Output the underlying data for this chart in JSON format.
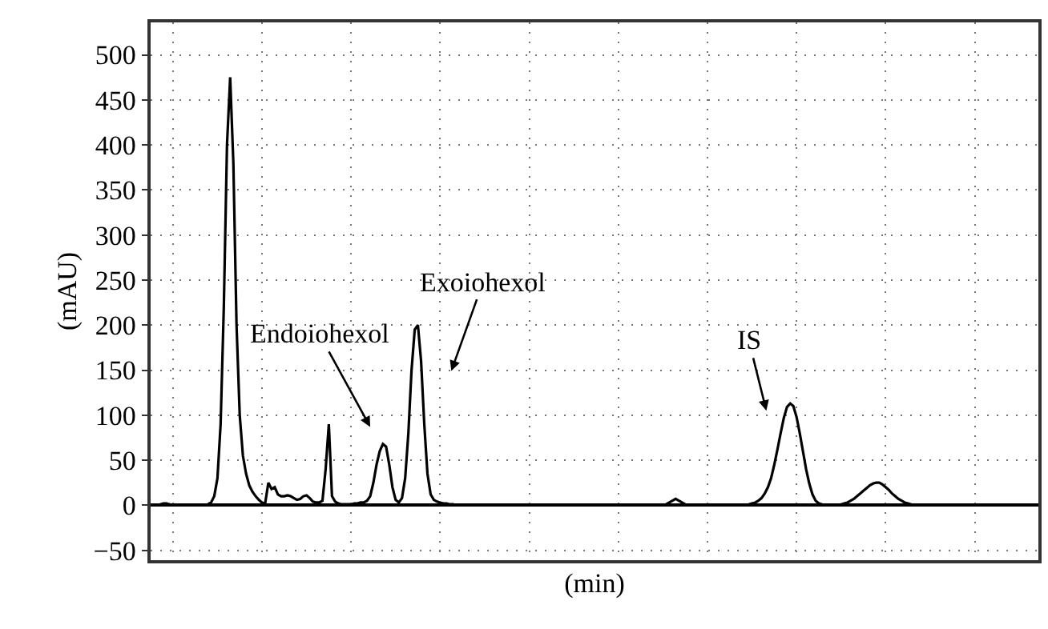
{
  "chart_data": {
    "type": "line",
    "xlabel": "(min)",
    "ylabel": "(mAU)",
    "categories": [
      null,
      null,
      null,
      null,
      null,
      null,
      null,
      null,
      null,
      null,
      null,
      null,
      null,
      null,
      null,
      null,
      null,
      null,
      null,
      null,
      null,
      null,
      null,
      null,
      null,
      null,
      null,
      null,
      null,
      null,
      null,
      null,
      null,
      null,
      null,
      null,
      null,
      null,
      null,
      null,
      null,
      null,
      null,
      null,
      null,
      null,
      null,
      null,
      null,
      null,
      null,
      null,
      null,
      null,
      null,
      null,
      null,
      null,
      null,
      null,
      null,
      null,
      null,
      null,
      null,
      null,
      null,
      null,
      null,
      null,
      null,
      null,
      null,
      null,
      null,
      null,
      null,
      null,
      null,
      null,
      null,
      null,
      null,
      null,
      null,
      null,
      null,
      null,
      null,
      null,
      null,
      null,
      null,
      null,
      null,
      null,
      null,
      null,
      null,
      null,
      null,
      null,
      null,
      null,
      null,
      null,
      null,
      null,
      null,
      null,
      null,
      null,
      null,
      null,
      null,
      null,
      null,
      null,
      null,
      null,
      null,
      null,
      null,
      null,
      null,
      null,
      null,
      null,
      null,
      null,
      null,
      null,
      null,
      null,
      null,
      null,
      null,
      null,
      null,
      null,
      null,
      null,
      null,
      null,
      null,
      null,
      null,
      null,
      null,
      null,
      null,
      null,
      null,
      null,
      null,
      null,
      null,
      null,
      null,
      null,
      null,
      null,
      null,
      null,
      null,
      null,
      null,
      null,
      null,
      null,
      null,
      null,
      null,
      null,
      null,
      null,
      null,
      null,
      null,
      null,
      null,
      null,
      null,
      null,
      null,
      null,
      null,
      null,
      null,
      null,
      null,
      null,
      null,
      null,
      null,
      null,
      null,
      null,
      null,
      null,
      null,
      null,
      null,
      null,
      null,
      null,
      null,
      null,
      null,
      null,
      null,
      null,
      null,
      null,
      null,
      null,
      null,
      null,
      null,
      null,
      null,
      null,
      null,
      null,
      null,
      null,
      null,
      null,
      null,
      null,
      null,
      null,
      null,
      null,
      null,
      null,
      null,
      null,
      null,
      null,
      null,
      null,
      null,
      null,
      null,
      null,
      null,
      null,
      null,
      null,
      null,
      null,
      null,
      null,
      null,
      null,
      null,
      null,
      null,
      null,
      null,
      null,
      null,
      null,
      null,
      null,
      null,
      null,
      null,
      null,
      null,
      null,
      null,
      null,
      null,
      null,
      null,
      null,
      null,
      null
    ],
    "series": [
      {
        "color": "#000000",
        "values": [
          0,
          0,
          0,
          1,
          2,
          2,
          1,
          0,
          0,
          0,
          0,
          0,
          0,
          0,
          0,
          0,
          0,
          0,
          1,
          3,
          10,
          30,
          90,
          220,
          400,
          475,
          380,
          200,
          100,
          55,
          35,
          22,
          15,
          10,
          6,
          3,
          2,
          25,
          18,
          20,
          12,
          10,
          10,
          11,
          10,
          8,
          6,
          7,
          10,
          11,
          8,
          4,
          3,
          3,
          5,
          40,
          90,
          10,
          4,
          2,
          1,
          1,
          1,
          1,
          2,
          2,
          3,
          3,
          5,
          10,
          25,
          45,
          60,
          68,
          65,
          45,
          20,
          6,
          3,
          8,
          30,
          80,
          150,
          195,
          200,
          160,
          90,
          35,
          12,
          6,
          4,
          3,
          2,
          2,
          1,
          1,
          0,
          0,
          0,
          0,
          0,
          0,
          0,
          0,
          0,
          0,
          0,
          0,
          0,
          0,
          0,
          0,
          0,
          0,
          0,
          0,
          0,
          0,
          0,
          0,
          0,
          0,
          0,
          0,
          0,
          0,
          0,
          0,
          0,
          0,
          0,
          0,
          0,
          0,
          0,
          0,
          0,
          0,
          0,
          0,
          0,
          0,
          0,
          0,
          0,
          0,
          0,
          0,
          0,
          0,
          0,
          0,
          0,
          0,
          0,
          0,
          0,
          0,
          0,
          0,
          0,
          0,
          1,
          3,
          5,
          7,
          5,
          3,
          1,
          0,
          0,
          0,
          0,
          0,
          0,
          0,
          0,
          0,
          0,
          0,
          0,
          0,
          0,
          0,
          0,
          0,
          0,
          0,
          1,
          2,
          3,
          5,
          8,
          13,
          20,
          30,
          45,
          62,
          80,
          97,
          109,
          113,
          110,
          98,
          80,
          60,
          40,
          24,
          12,
          5,
          2,
          1,
          0,
          0,
          0,
          0,
          0,
          1,
          2,
          3,
          5,
          7,
          10,
          13,
          16,
          19,
          22,
          24,
          25,
          25,
          23,
          20,
          17,
          13,
          10,
          7,
          5,
          3,
          2,
          1,
          0,
          0,
          0,
          0,
          0,
          0,
          0,
          0,
          0,
          0,
          0,
          0,
          0,
          0,
          0,
          0,
          0,
          0,
          0,
          0,
          0,
          0,
          0,
          0,
          0,
          0,
          0,
          0,
          0,
          0,
          0,
          0,
          0,
          0,
          0,
          0,
          0,
          0,
          0,
          0
        ]
      }
    ],
    "annotations": [
      "Endoiohexol",
      "Exoiohexol",
      "IS"
    ],
    "ylim": [
      -61,
      536
    ],
    "yticks": [
      -50,
      0,
      50,
      100,
      150,
      200,
      250,
      300,
      350,
      400,
      450,
      500
    ],
    "grid": true,
    "marker": "none",
    "line_style": "solid"
  }
}
